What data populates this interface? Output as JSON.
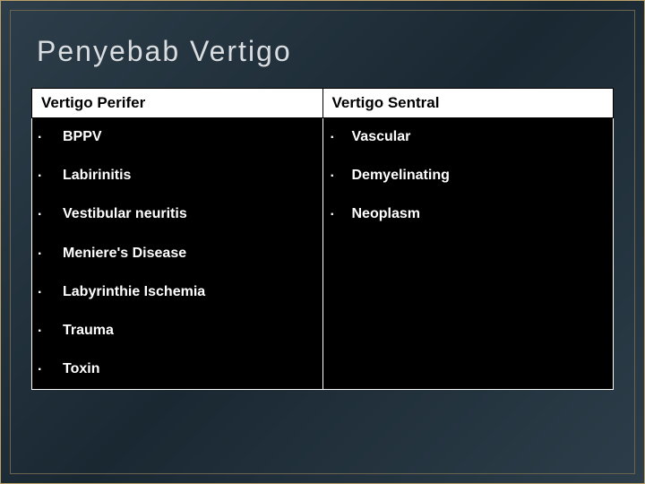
{
  "slide": {
    "title": "Penyebab Vertigo",
    "background_gradient": [
      "#2d3e4a",
      "#1a2832",
      "#2d3e4a"
    ],
    "outer_border_color": "#b8a068",
    "inner_border_color": "#6b6450",
    "title_color": "#d9dde0",
    "title_fontsize": 32
  },
  "table": {
    "header_bg": "#ffffff",
    "header_fg": "#000000",
    "cell_bg": "#000000",
    "cell_fg": "#ffffff",
    "border_color": "#ffffff",
    "columns": [
      {
        "header": "Vertigo Perifer"
      },
      {
        "header": "Vertigo Sentral"
      }
    ],
    "left_items": [
      "BPPV",
      "Labirinitis",
      "Vestibular neuritis",
      "Meniere's Disease",
      "Labyrinthie Ischemia",
      "Trauma",
      "Toxin"
    ],
    "right_items": [
      "Vascular",
      "Demyelinating",
      "Neoplasm"
    ],
    "bullet_char": "·"
  }
}
